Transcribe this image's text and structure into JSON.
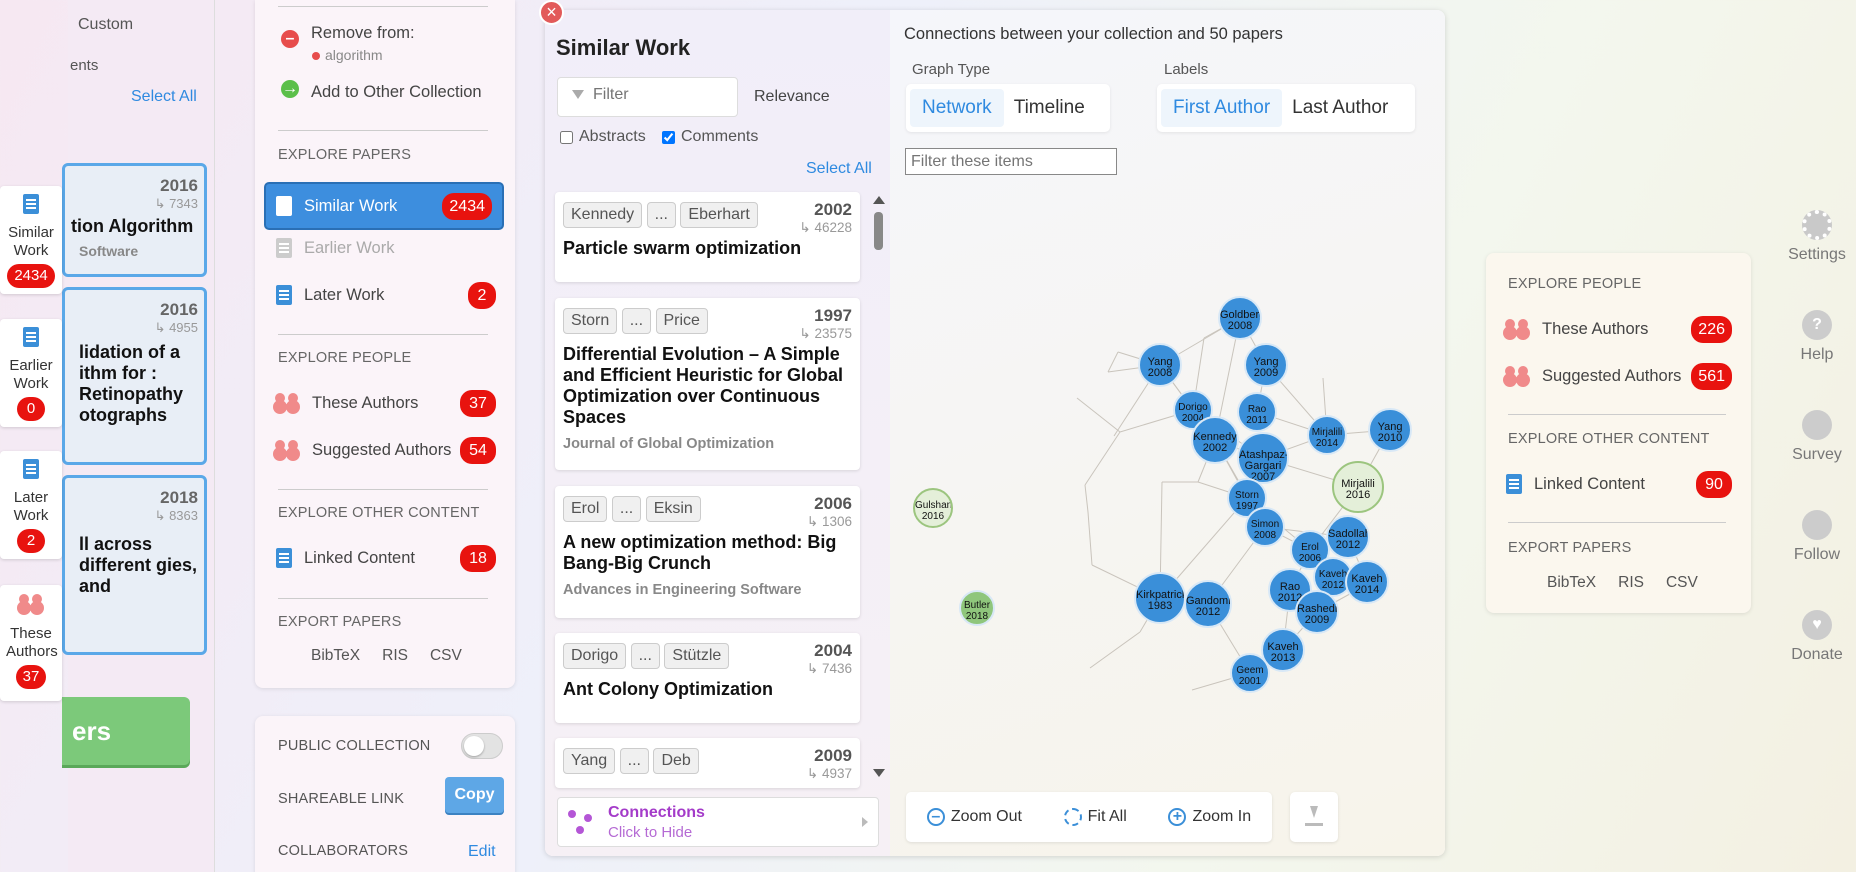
{
  "left_tabs": [
    {
      "label": "Similar Work",
      "count": "2434"
    },
    {
      "label": "Earlier Work",
      "count": "0"
    },
    {
      "label": "Later Work",
      "count": "2"
    },
    {
      "label": "These Authors",
      "count": "37"
    }
  ],
  "far_left": {
    "custom": "Custom",
    "ents": "ents",
    "select_all": "Select All",
    "papers": [
      {
        "year": "2016",
        "cites": "↳ 7343",
        "title": "tion Algorithm",
        "journal": "Software"
      },
      {
        "year": "2016",
        "cites": "↳ 4955",
        "title": "lidation of a ithm for : Retinopathy otographs",
        "journal": ""
      },
      {
        "year": "2018",
        "cites": "↳ 8363",
        "title": "ll across different gies, and",
        "journal": ""
      }
    ],
    "button": "ers"
  },
  "panel": {
    "remove_from": "Remove from:",
    "remove_tag": "algorithm",
    "add_other": "Add to Other Collection",
    "explore_papers": "EXPLORE PAPERS",
    "similar_work": "Similar Work",
    "similar_count": "2434",
    "earlier_work": "Earlier Work",
    "later_work": "Later Work",
    "later_count": "2",
    "explore_people": "EXPLORE PEOPLE",
    "these_authors": "These Authors",
    "these_count": "37",
    "suggested_authors": "Suggested Authors",
    "suggested_count": "54",
    "explore_other": "EXPLORE OTHER CONTENT",
    "linked_content": "Linked Content",
    "linked_count": "18",
    "export_papers": "EXPORT PAPERS",
    "bibtex": "BibTeX",
    "ris": "RIS",
    "csv": "CSV",
    "public_collection": "PUBLIC COLLECTION",
    "shareable_link": "SHAREABLE LINK",
    "copy": "Copy",
    "collaborators": "COLLABORATORS",
    "edit": "Edit"
  },
  "similar": {
    "title": "Similar Work",
    "filter_placeholder": "Filter",
    "sort": "Relevance",
    "abstracts": "Abstracts",
    "comments": "Comments",
    "select_all": "Select All",
    "papers": [
      {
        "a1": "Kennedy",
        "a2": "Eberhart",
        "year": "2002",
        "cites": "↳ 46228",
        "title": "Particle swarm optimization",
        "journal": ""
      },
      {
        "a1": "Storn",
        "a2": "Price",
        "year": "1997",
        "cites": "↳ 23575",
        "title": "Differential Evolution – A Simple and Efficient Heuristic for Global Optimization over Continuous Spaces",
        "journal": "Journal of Global Optimization"
      },
      {
        "a1": "Erol",
        "a2": "Eksin",
        "year": "2006",
        "cites": "↳ 1306",
        "title": "A new optimization method: Big Bang-Big Crunch",
        "journal": "Advances in Engineering Software"
      },
      {
        "a1": "Dorigo",
        "a2": "Stützle",
        "year": "2004",
        "cites": "↳ 7436",
        "title": "Ant Colony Optimization",
        "journal": ""
      },
      {
        "a1": "Yang",
        "a2": "Deb",
        "year": "2009",
        "cites": "↳ 4937",
        "title": "",
        "journal": ""
      }
    ],
    "ellipsis": "...",
    "connections": "Connections",
    "click_to_hide": "Click to Hide"
  },
  "graph": {
    "heading": "Connections between your collection and 50 papers",
    "graph_type": "Graph Type",
    "network": "Network",
    "timeline": "Timeline",
    "labels": "Labels",
    "first_author": "First Author",
    "last_author": "Last Author",
    "filter_placeholder": "Filter these items",
    "zoom_out": "Zoom Out",
    "fit_all": "Fit All",
    "zoom_in": "Zoom In",
    "nodes": [
      {
        "t": "Goldberg 2008"
      },
      {
        "t": "Yang 2008"
      },
      {
        "t": "Yang 2009"
      },
      {
        "t": "Dorigo 2004"
      },
      {
        "t": "Rao 2011"
      },
      {
        "t": "Kennedy 2002"
      },
      {
        "t": "Mirjalili 2014"
      },
      {
        "t": "Yang 2010"
      },
      {
        "t": "Atashpaz-Gargari 2007"
      },
      {
        "t": "Mirjalili 2016"
      },
      {
        "t": "Storn 1997"
      },
      {
        "t": "Simon 2008"
      },
      {
        "t": "Sadollah 2012"
      },
      {
        "t": "Erol 2006"
      },
      {
        "t": "Kaveh 2012"
      },
      {
        "t": "Kaveh 2014"
      },
      {
        "t": "Gulshan 2016"
      },
      {
        "t": "Kirkpatrick 1983"
      },
      {
        "t": "Gandomi 2012"
      },
      {
        "t": "Rao 2012"
      },
      {
        "t": "Rashedi 2009"
      },
      {
        "t": "Butler 2018"
      },
      {
        "t": "Kaveh 2013"
      },
      {
        "t": "Geem 2001"
      }
    ]
  },
  "right_panel": {
    "explore_people": "EXPLORE PEOPLE",
    "these_authors": "These Authors",
    "these_count": "226",
    "suggested_authors": "Suggested Authors",
    "suggested_count": "561",
    "explore_other": "EXPLORE OTHER CONTENT",
    "linked_content": "Linked Content",
    "linked_count": "90",
    "export_papers": "EXPORT PAPERS",
    "bibtex": "BibTeX",
    "ris": "RIS",
    "csv": "CSV"
  },
  "right_sidebar": [
    {
      "label": "Settings"
    },
    {
      "label": "Help"
    },
    {
      "label": "Survey"
    },
    {
      "label": "Follow"
    },
    {
      "label": "Donate"
    }
  ]
}
